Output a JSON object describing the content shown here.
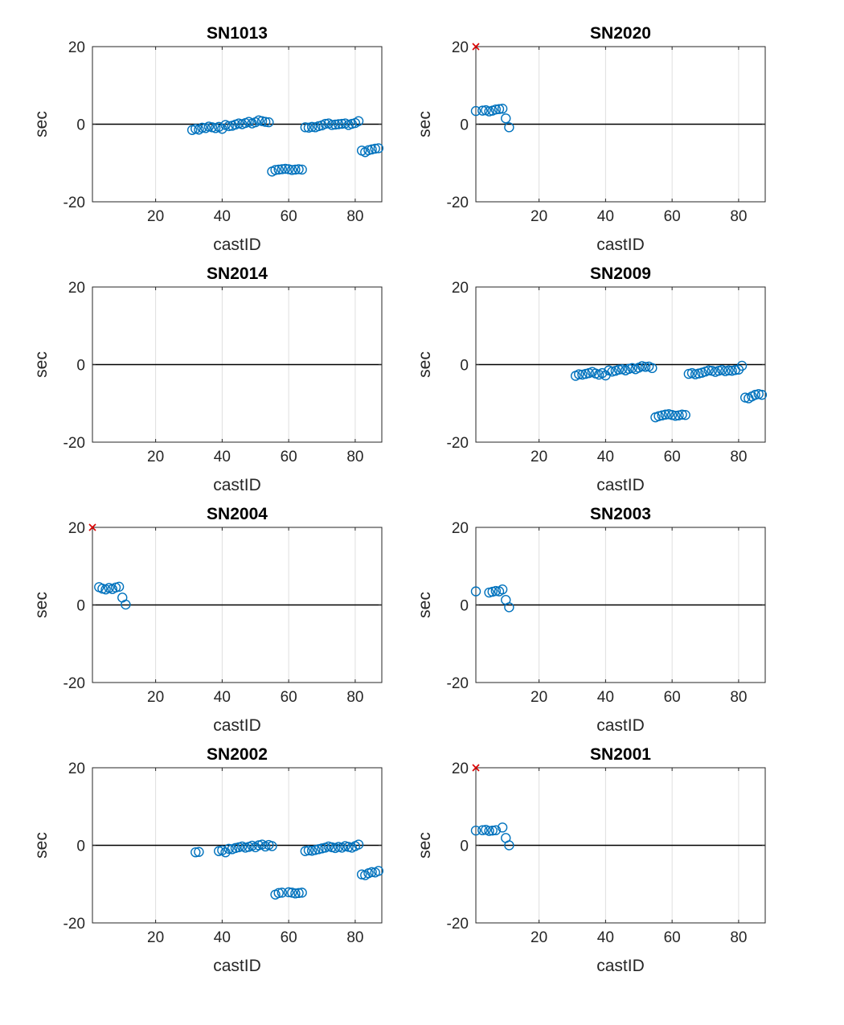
{
  "chart_data": [
    {
      "type": "scatter",
      "title": "SN1013",
      "xlabel": "castID",
      "ylabel": "sec",
      "xlim": [
        1,
        88
      ],
      "ylim": [
        -20,
        20
      ],
      "xticks": [
        20,
        40,
        60,
        80
      ],
      "yticks": [
        -20,
        0,
        20
      ],
      "grid": "x",
      "reference_line_y": 0,
      "x": [
        31,
        32,
        33,
        34,
        35,
        36,
        37,
        38,
        39,
        40,
        41,
        42,
        43,
        44,
        45,
        46,
        47,
        48,
        49,
        50,
        51,
        52,
        53,
        54,
        55,
        56,
        57,
        58,
        59,
        60,
        61,
        62,
        63,
        64,
        65,
        66,
        67,
        68,
        69,
        70,
        71,
        72,
        73,
        74,
        75,
        76,
        77,
        78,
        79,
        80,
        81,
        82,
        83,
        84,
        85,
        86,
        87
      ],
      "y": [
        -1.5,
        -1.2,
        -1.4,
        -0.9,
        -1.0,
        -0.6,
        -0.8,
        -1.0,
        -0.7,
        -1.2,
        -0.2,
        -0.5,
        -0.4,
        -0.1,
        0.2,
        0.0,
        0.3,
        0.6,
        0.2,
        0.5,
        1.0,
        0.8,
        0.6,
        0.5,
        -12.2,
        -11.8,
        -11.7,
        -11.6,
        -11.5,
        -11.6,
        -11.8,
        -11.7,
        -11.6,
        -11.7,
        -0.8,
        -0.9,
        -0.7,
        -0.8,
        -0.5,
        -0.3,
        0.1,
        0.2,
        -0.2,
        -0.1,
        0.0,
        0.1,
        0.2,
        -0.2,
        0.1,
        0.3,
        0.8,
        -6.8,
        -7.2,
        -6.7,
        -6.5,
        -6.3,
        -6.2
      ],
      "outliers": []
    },
    {
      "type": "scatter",
      "title": "SN2020",
      "xlabel": "castID",
      "ylabel": "sec",
      "xlim": [
        1,
        88
      ],
      "ylim": [
        -20,
        20
      ],
      "xticks": [
        20,
        40,
        60,
        80
      ],
      "yticks": [
        -20,
        0,
        20
      ],
      "grid": "x",
      "reference_line_y": 0,
      "x": [
        1,
        3,
        4,
        5,
        6,
        7,
        8,
        9,
        10,
        11
      ],
      "y": [
        3.4,
        3.5,
        3.6,
        3.3,
        3.5,
        3.8,
        3.9,
        4.0,
        1.5,
        -0.8
      ],
      "outliers": [
        {
          "x": 1,
          "y": 20
        }
      ]
    },
    {
      "type": "scatter",
      "title": "SN2014",
      "xlabel": "castID",
      "ylabel": "sec",
      "xlim": [
        1,
        88
      ],
      "ylim": [
        -20,
        20
      ],
      "xticks": [
        20,
        40,
        60,
        80
      ],
      "yticks": [
        -20,
        0,
        20
      ],
      "grid": "x",
      "reference_line_y": 0,
      "x": [],
      "y": [],
      "outliers": []
    },
    {
      "type": "scatter",
      "title": "SN2009",
      "xlabel": "castID",
      "ylabel": "sec",
      "xlim": [
        1,
        88
      ],
      "ylim": [
        -20,
        20
      ],
      "xticks": [
        20,
        40,
        60,
        80
      ],
      "yticks": [
        -20,
        0,
        20
      ],
      "grid": "x",
      "reference_line_y": 0,
      "x": [
        31,
        32,
        33,
        34,
        35,
        36,
        37,
        38,
        39,
        40,
        41,
        42,
        43,
        44,
        45,
        46,
        47,
        48,
        49,
        50,
        51,
        52,
        53,
        54,
        55,
        56,
        57,
        58,
        59,
        60,
        61,
        62,
        63,
        64,
        65,
        66,
        67,
        68,
        69,
        70,
        71,
        72,
        73,
        74,
        75,
        76,
        77,
        78,
        79,
        80,
        81,
        82,
        83,
        84,
        85,
        86,
        87
      ],
      "y": [
        -2.9,
        -2.5,
        -2.6,
        -2.4,
        -2.2,
        -1.9,
        -2.3,
        -2.6,
        -2.2,
        -2.8,
        -1.5,
        -1.8,
        -1.6,
        -1.3,
        -1.2,
        -1.5,
        -1.1,
        -0.9,
        -1.2,
        -0.8,
        -0.4,
        -0.6,
        -0.5,
        -0.9,
        -13.6,
        -13.3,
        -13.1,
        -12.9,
        -12.8,
        -13.0,
        -13.2,
        -13.1,
        -12.9,
        -13.0,
        -2.4,
        -2.2,
        -2.5,
        -2.3,
        -2.1,
        -1.8,
        -1.5,
        -1.6,
        -1.9,
        -1.6,
        -1.4,
        -1.7,
        -1.5,
        -1.6,
        -1.4,
        -1.3,
        -0.3,
        -8.5,
        -8.7,
        -8.2,
        -7.8,
        -7.6,
        -7.8
      ],
      "outliers": []
    },
    {
      "type": "scatter",
      "title": "SN2004",
      "xlabel": "castID",
      "ylabel": "sec",
      "xlim": [
        1,
        88
      ],
      "ylim": [
        -20,
        20
      ],
      "xticks": [
        20,
        40,
        60,
        80
      ],
      "yticks": [
        -20,
        0,
        20
      ],
      "grid": "x",
      "reference_line_y": 0,
      "x": [
        3,
        4,
        5,
        6,
        7,
        8,
        9,
        10,
        11
      ],
      "y": [
        4.6,
        4.2,
        4.0,
        4.4,
        4.1,
        4.5,
        4.7,
        1.9,
        0.1
      ],
      "outliers": [
        {
          "x": 1,
          "y": 20
        }
      ]
    },
    {
      "type": "scatter",
      "title": "SN2003",
      "xlabel": "castID",
      "ylabel": "sec",
      "xlim": [
        1,
        88
      ],
      "ylim": [
        -20,
        20
      ],
      "xticks": [
        20,
        40,
        60,
        80
      ],
      "yticks": [
        -20,
        0,
        20
      ],
      "grid": "x",
      "reference_line_y": 0,
      "x": [
        1,
        5,
        6,
        7,
        8,
        9,
        10,
        11
      ],
      "y": [
        3.5,
        3.2,
        3.4,
        3.6,
        3.5,
        4.0,
        1.3,
        -0.6
      ],
      "outliers": []
    },
    {
      "type": "scatter",
      "title": "SN2002",
      "xlabel": "castID",
      "ylabel": "sec",
      "xlim": [
        1,
        88
      ],
      "ylim": [
        -20,
        20
      ],
      "xticks": [
        20,
        40,
        60,
        80
      ],
      "yticks": [
        -20,
        0,
        20
      ],
      "grid": "x",
      "reference_line_y": 0,
      "x": [
        32,
        33,
        39,
        40,
        41,
        42,
        43,
        44,
        45,
        46,
        47,
        48,
        49,
        50,
        51,
        52,
        53,
        54,
        55,
        56,
        57,
        58,
        60,
        61,
        62,
        63,
        64,
        65,
        66,
        67,
        68,
        69,
        70,
        71,
        72,
        73,
        74,
        75,
        76,
        77,
        78,
        79,
        80,
        81,
        82,
        83,
        84,
        85,
        86,
        87
      ],
      "y": [
        -1.8,
        -1.7,
        -1.5,
        -1.3,
        -1.8,
        -0.9,
        -1.0,
        -0.7,
        -0.5,
        -0.3,
        -0.6,
        -0.4,
        -0.1,
        -0.5,
        0.0,
        0.2,
        -0.3,
        0.1,
        -0.2,
        -12.7,
        -12.3,
        -12.2,
        -12.1,
        -12.2,
        -12.4,
        -12.3,
        -12.2,
        -1.5,
        -1.3,
        -1.4,
        -1.2,
        -1.0,
        -0.8,
        -0.6,
        -0.3,
        -0.5,
        -0.7,
        -0.4,
        -0.6,
        -0.2,
        -0.4,
        -0.6,
        -0.2,
        0.2,
        -7.5,
        -7.7,
        -7.2,
        -6.9,
        -7.0,
        -6.6
      ],
      "outliers": []
    },
    {
      "type": "scatter",
      "title": "SN2001",
      "xlabel": "castID",
      "ylabel": "sec",
      "xlim": [
        1,
        88
      ],
      "ylim": [
        -20,
        20
      ],
      "xticks": [
        20,
        40,
        60,
        80
      ],
      "yticks": [
        -20,
        0,
        20
      ],
      "grid": "x",
      "reference_line_y": 0,
      "x": [
        1,
        3,
        4,
        5,
        6,
        7,
        9,
        10,
        11
      ],
      "y": [
        3.8,
        3.9,
        4.0,
        3.7,
        3.8,
        3.9,
        4.6,
        1.9,
        0.0
      ],
      "outliers": [
        {
          "x": 1,
          "y": 20
        }
      ]
    }
  ],
  "style": {
    "marker_color": "#0072BD",
    "outlier_color": "#D90000",
    "zero_line_color": "#000000",
    "grid_color": "#dfdfdf",
    "axis_color": "#262626",
    "background": "#ffffff"
  }
}
